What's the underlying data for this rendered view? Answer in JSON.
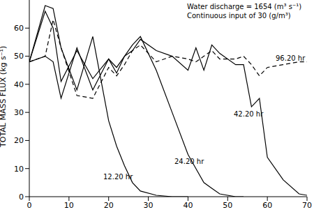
{
  "chart_data": {
    "type": "line",
    "y_label": "TOTAL MASS FLUX (kg s⁻¹)",
    "annotations": [
      "Water discharge = 1654 (m³ s⁻¹)",
      "Continuous input of 30 (g/m³)"
    ],
    "x": [
      0,
      4,
      6,
      8,
      12,
      16,
      20,
      22,
      24,
      26,
      28,
      32,
      36,
      40,
      42,
      44,
      46,
      48,
      52,
      54,
      56,
      58,
      60,
      64,
      68,
      70
    ],
    "series": [
      {
        "name": "12.20 hr",
        "color": "#000000",
        "line_style": "solid",
        "values": [
          48,
          68,
          67,
          53,
          38,
          57,
          27,
          18,
          11,
          5,
          2,
          0.5,
          0,
          0,
          null,
          null,
          null,
          null,
          null,
          null,
          null,
          null,
          null,
          null,
          null,
          null
        ]
      },
      {
        "name": "24.20 hr",
        "color": "#000000",
        "line_style": "solid",
        "values": [
          48,
          66,
          60,
          41,
          52,
          42,
          49,
          44,
          50,
          54,
          57,
          45,
          30,
          15,
          10,
          5,
          3,
          1,
          0,
          0,
          null,
          null,
          null,
          null,
          null,
          null
        ]
      },
      {
        "name": "42.20 hr",
        "color": "#000000",
        "line_style": "solid",
        "values": [
          48,
          50,
          48,
          35,
          53,
          38,
          49,
          46,
          50,
          52,
          56,
          52,
          50,
          45,
          53,
          45,
          54,
          51,
          47,
          47,
          32,
          35,
          14,
          6,
          1,
          0.5
        ]
      },
      {
        "name": "96.20 hr",
        "color": "#000000",
        "line_style": "dashed",
        "values": [
          48,
          50,
          63,
          53,
          36,
          35,
          46,
          43,
          47,
          52,
          54,
          48,
          50,
          49,
          48,
          50,
          52,
          49,
          49,
          50,
          47,
          43,
          46,
          47,
          48,
          48
        ]
      }
    ],
    "xlim": [
      0,
      70
    ],
    "xticks": [
      0,
      10,
      20,
      30,
      40,
      50,
      60,
      70
    ],
    "ylim": [
      0,
      70
    ],
    "yticks": [
      0,
      10,
      20,
      30,
      40,
      50,
      60
    ],
    "grid": false,
    "legend": "none"
  }
}
